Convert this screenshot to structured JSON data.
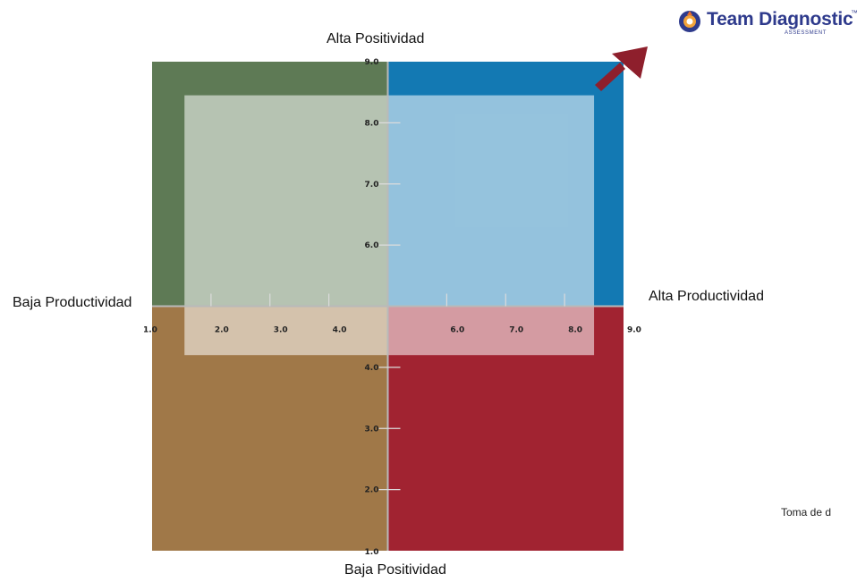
{
  "brand": {
    "name": "Team Diagnostic",
    "trademark": "™",
    "subtitle": "ASSESSMENT"
  },
  "axis_labels": {
    "top": "Alta Positividad",
    "bottom": "Baja Positividad",
    "left": "Baja Productividad",
    "right": "Alta Productividad"
  },
  "footer_note": "Toma de d",
  "colors": {
    "top_left": "#5e7a55",
    "top_right": "#1379b3",
    "bottom_left": "#a07848",
    "bottom_right": "#a12331",
    "overlay": "rgba(255,255,255,0.55)",
    "arrow": "#8e1f2c",
    "brand": "#2e3a8c"
  },
  "chart_data": {
    "type": "scatter",
    "x_axis": {
      "range": [
        1.0,
        9.0
      ],
      "crossing": 5.0,
      "tick_labels": [
        "1.0",
        "2.0",
        "3.0",
        "4.0",
        "6.0",
        "7.0",
        "8.0",
        "9.0"
      ],
      "ticks": [
        1,
        2,
        3,
        4,
        6,
        7,
        8,
        9
      ]
    },
    "y_axis": {
      "range": [
        1.0,
        9.0
      ],
      "crossing": 5.0,
      "tick_labels": [
        "1.0",
        "2.0",
        "3.0",
        "4.0",
        "6.0",
        "7.0",
        "8.0",
        "9.0"
      ],
      "ticks": [
        1,
        2,
        3,
        4,
        6,
        7,
        8,
        9
      ]
    },
    "quadrants": [
      {
        "id": "top_left",
        "x": [
          1,
          5
        ],
        "y": [
          5,
          9
        ]
      },
      {
        "id": "top_right",
        "x": [
          5,
          9
        ],
        "y": [
          5,
          9
        ]
      },
      {
        "id": "bottom_left",
        "x": [
          1,
          5
        ],
        "y": [
          1,
          5
        ]
      },
      {
        "id": "bottom_right",
        "x": [
          5,
          9
        ],
        "y": [
          1,
          5
        ]
      }
    ],
    "team_area": {
      "x": [
        1.55,
        8.5
      ],
      "y": [
        4.2,
        8.45
      ]
    },
    "grid": false
  }
}
